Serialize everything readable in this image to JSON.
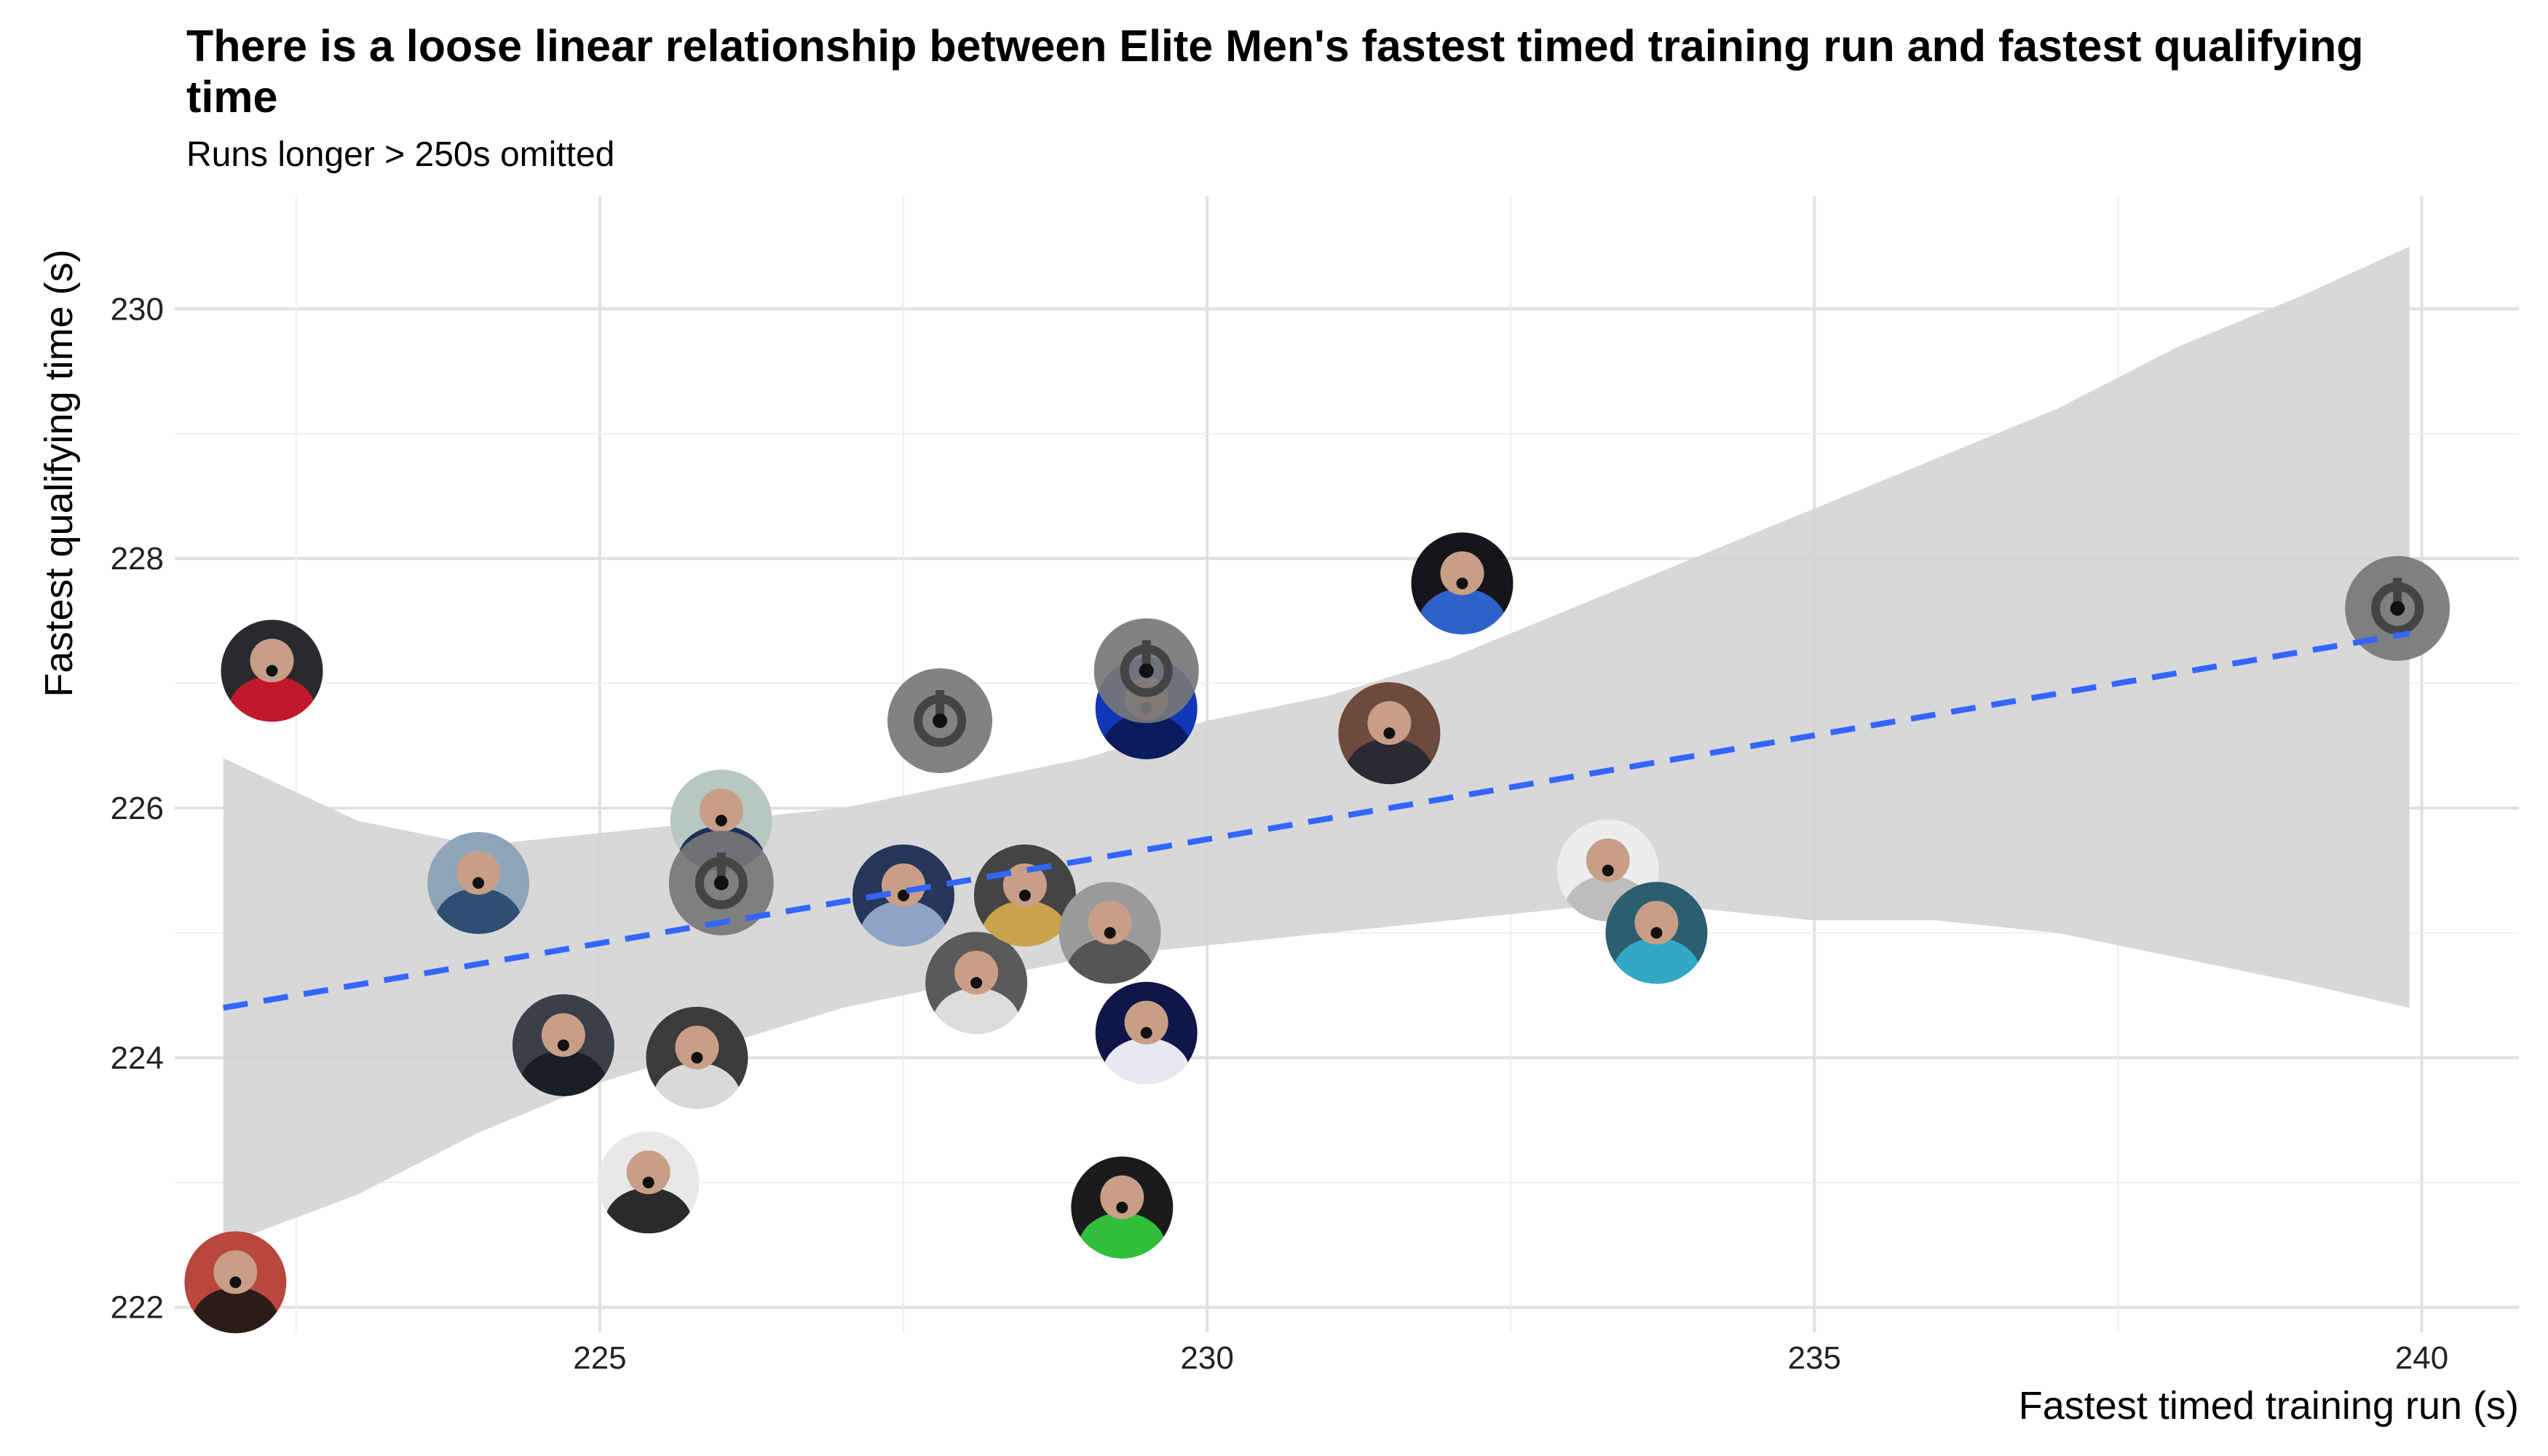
{
  "chart_data": {
    "type": "scatter",
    "title": "There is a loose linear relationship between Elite Men's fastest timed training run and fastest qualifying time",
    "subtitle": "Runs longer > 250s omitted",
    "xlabel": "Fastest timed training run (s)",
    "ylabel": "Fastest qualifying time (s)",
    "xlim": [
      221.5,
      240.8
    ],
    "ylim": [
      221.8,
      230.9
    ],
    "x_ticks": [
      225,
      230,
      235,
      240
    ],
    "y_ticks": [
      222,
      224,
      226,
      228,
      230
    ],
    "x_tick_labels": [
      "225",
      "230",
      "235",
      "240"
    ],
    "y_tick_labels": [
      "222",
      "224",
      "226",
      "228",
      "230"
    ],
    "grid": true,
    "legend": "none",
    "marker": "rider photo in circle",
    "points": [
      {
        "x": 222.0,
        "y": 222.2,
        "photo": "red-cap-rider"
      },
      {
        "x": 222.3,
        "y": 227.1,
        "photo": "black-helmet-rider"
      },
      {
        "x": 224.0,
        "y": 225.4,
        "photo": "rider-thumbs-up"
      },
      {
        "x": 224.7,
        "y": 224.1,
        "photo": "rider-portrait-dark"
      },
      {
        "x": 225.4,
        "y": 223.0,
        "photo": "full-face-helmet"
      },
      {
        "x": 225.8,
        "y": 224.0,
        "photo": "rainbow-jersey-rider"
      },
      {
        "x": 226.0,
        "y": 225.9,
        "photo": "rider-with-bike"
      },
      {
        "x": 226.0,
        "y": 225.4,
        "photo": "placeholder"
      },
      {
        "x": 227.5,
        "y": 225.3,
        "photo": "poster-rider"
      },
      {
        "x": 227.8,
        "y": 226.7,
        "photo": "placeholder"
      },
      {
        "x": 228.1,
        "y": 224.6,
        "photo": "rider-portrait-grey"
      },
      {
        "x": 228.5,
        "y": 225.3,
        "photo": "rider-with-medal"
      },
      {
        "x": 229.2,
        "y": 225.0,
        "photo": "rider-cap-portrait"
      },
      {
        "x": 229.3,
        "y": 222.8,
        "photo": "green-kit-rider"
      },
      {
        "x": 229.5,
        "y": 226.8,
        "photo": "blue-kit-rider"
      },
      {
        "x": 229.5,
        "y": 227.1,
        "photo": "placeholder"
      },
      {
        "x": 229.5,
        "y": 224.2,
        "photo": "rider-headset"
      },
      {
        "x": 231.5,
        "y": 226.6,
        "photo": "fox-kit-rider"
      },
      {
        "x": 232.1,
        "y": 227.8,
        "photo": "french-kit-rider"
      },
      {
        "x": 233.3,
        "y": 225.5,
        "photo": "faded-rider"
      },
      {
        "x": 233.7,
        "y": 225.0,
        "photo": "teal-kit-rider"
      },
      {
        "x": 239.8,
        "y": 227.6,
        "photo": "placeholder"
      }
    ],
    "trend": {
      "type": "linear",
      "x": [
        221.9,
        239.9
      ],
      "y": [
        224.4,
        227.4
      ],
      "style": "dashed"
    },
    "confidence_band": {
      "x": [
        221.9,
        223.0,
        224.0,
        225.0,
        226.0,
        227.0,
        228.0,
        229.0,
        230.0,
        231.0,
        232.0,
        233.0,
        234.0,
        235.0,
        236.0,
        237.0,
        238.0,
        239.0,
        239.9
      ],
      "upper": [
        226.4,
        225.9,
        225.7,
        225.8,
        225.9,
        226.0,
        226.2,
        226.4,
        226.7,
        226.9,
        227.2,
        227.6,
        228.0,
        228.4,
        228.8,
        229.2,
        229.7,
        230.1,
        230.5
      ],
      "lower": [
        222.5,
        222.9,
        223.4,
        223.8,
        224.1,
        224.4,
        224.6,
        224.8,
        224.9,
        225.0,
        225.1,
        225.2,
        225.2,
        225.1,
        225.1,
        225.0,
        224.8,
        224.6,
        224.4
      ]
    },
    "colors": {
      "trend": "#3366ff",
      "band": "#d4d4d4",
      "grid": "#e0e0e0",
      "placeholder": "#777777"
    }
  }
}
